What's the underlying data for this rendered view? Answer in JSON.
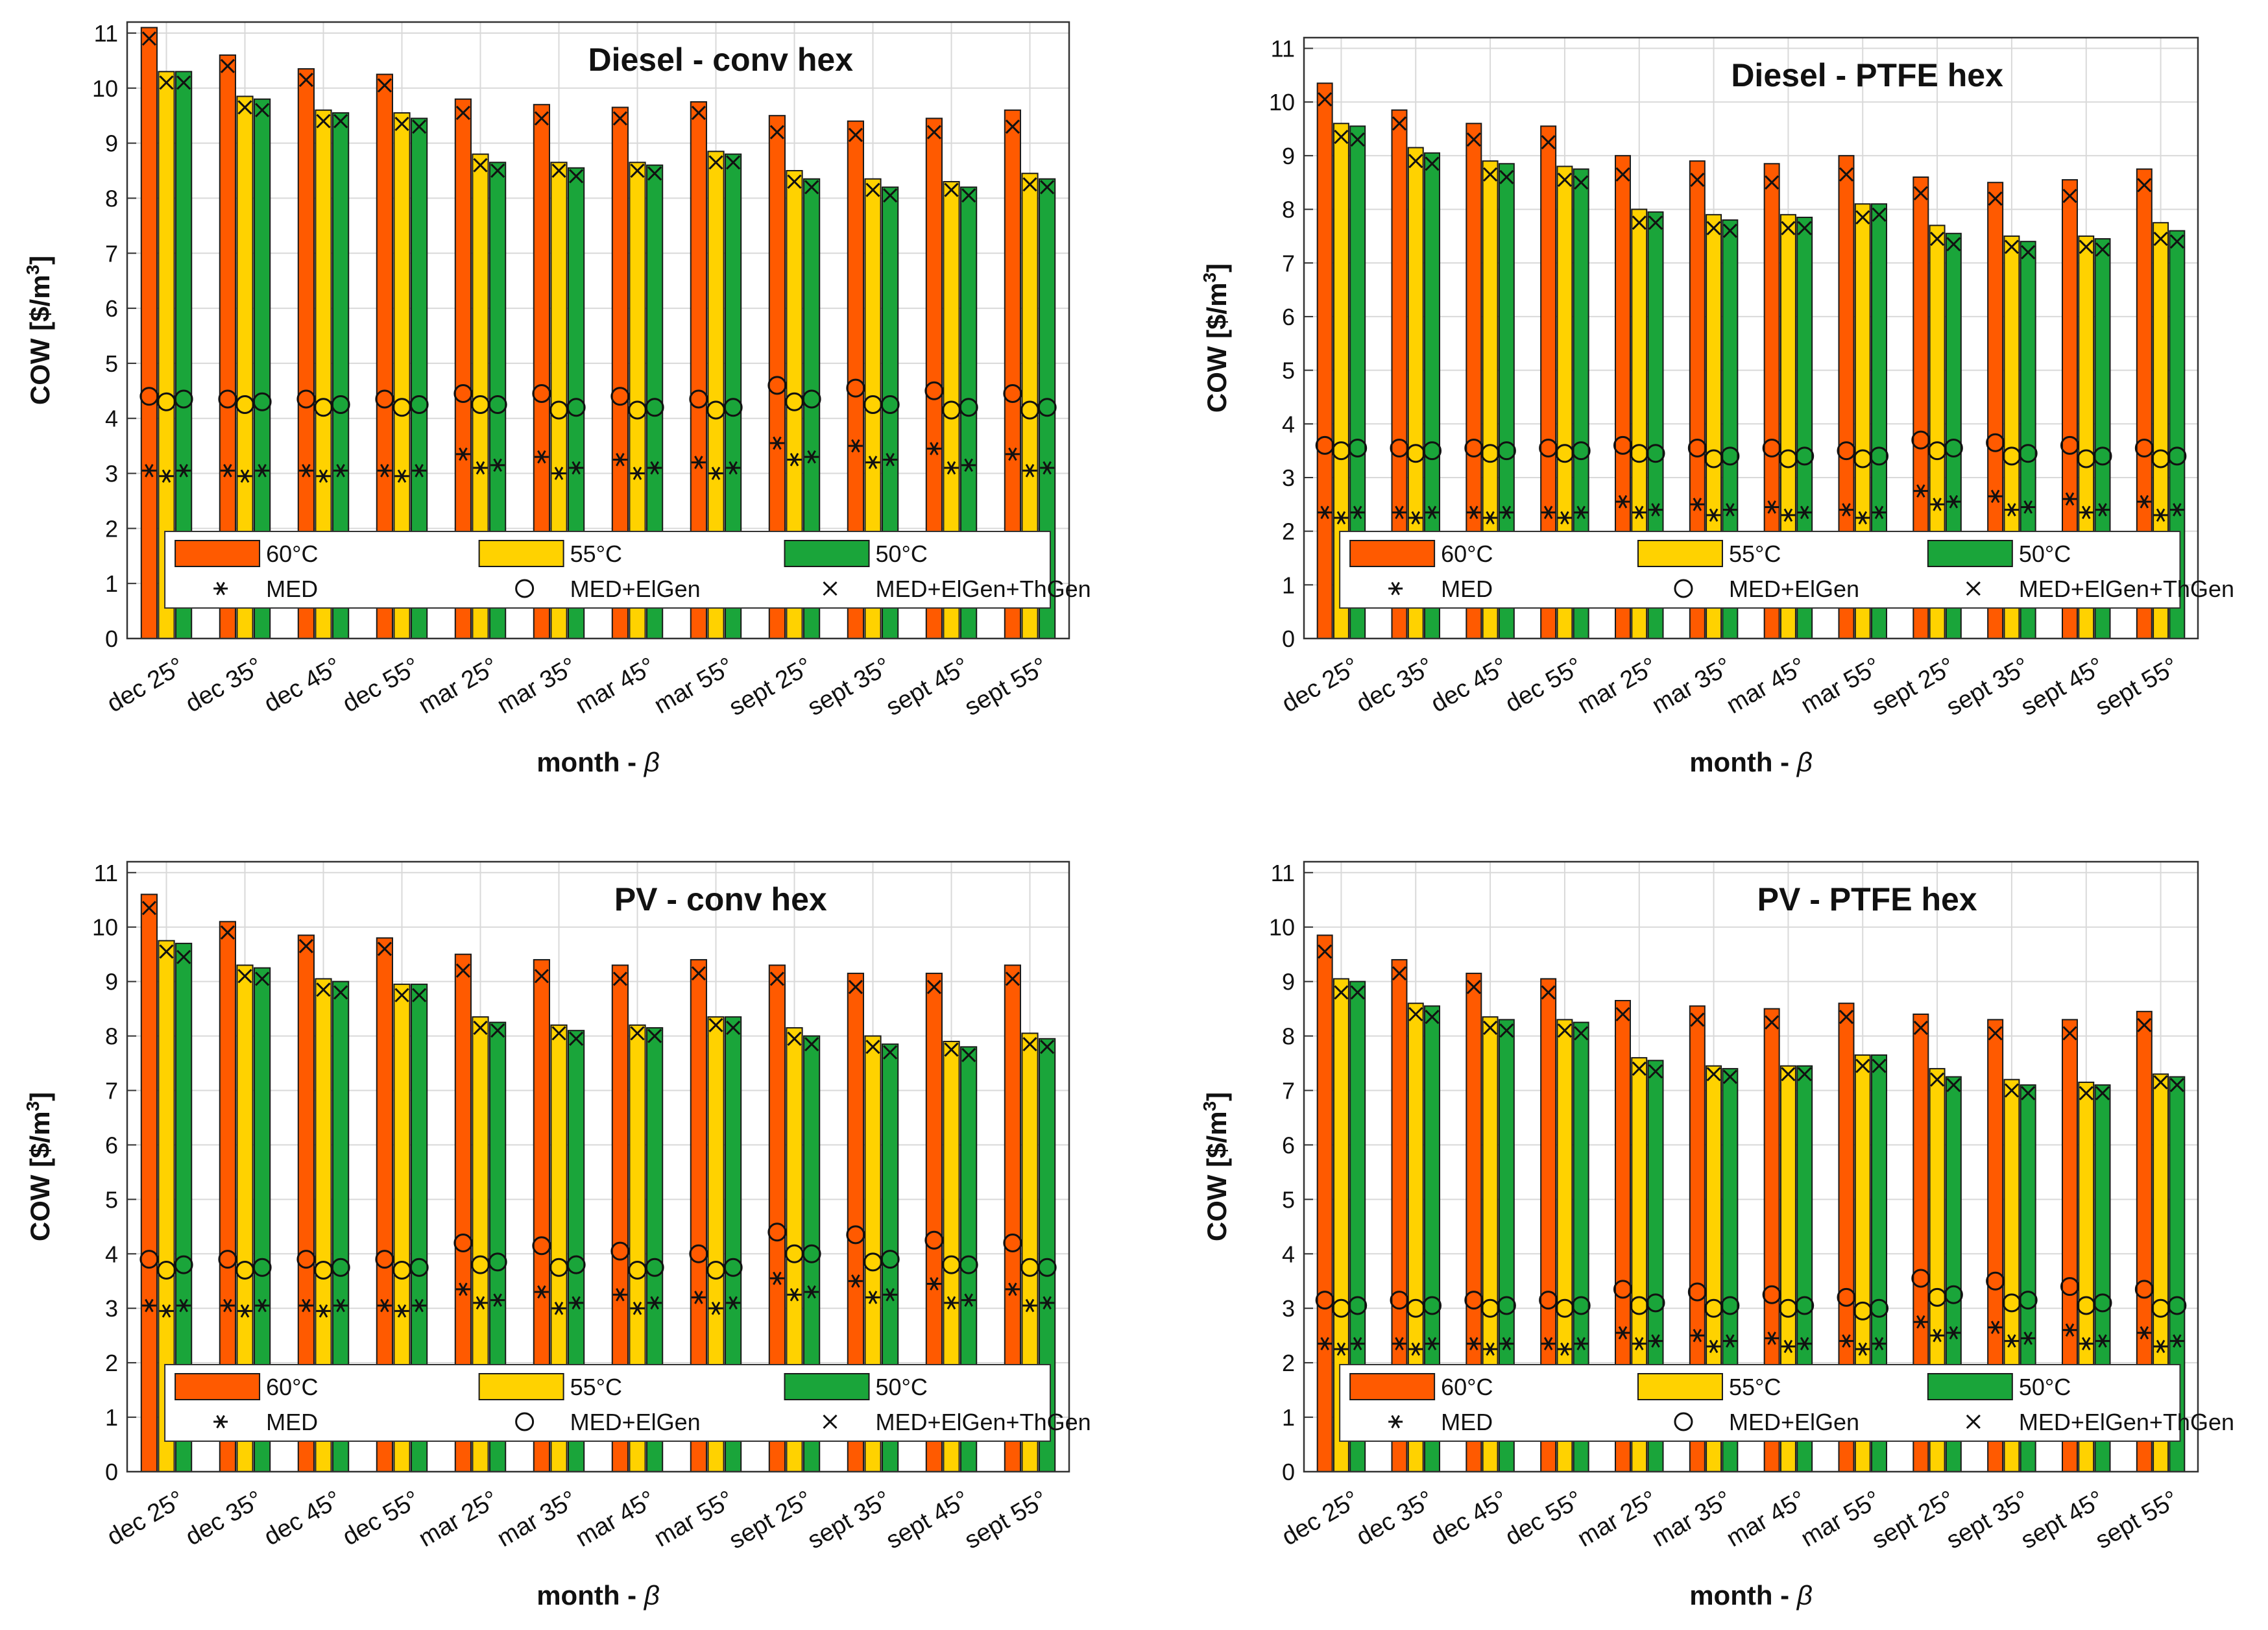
{
  "figure": {
    "description_free": true
  },
  "chart_data": [
    {
      "type": "bar",
      "title": "Diesel - conv hex",
      "xlabel": "month - β",
      "ylabel": "COW [$/m³]",
      "ylabel_base": "COW [$/m",
      "ylabel_sup": "3",
      "ylabel_end": "]",
      "xlabel_base": "month - ",
      "xlabel_sym": "β",
      "ylim": [
        0,
        11.2
      ],
      "yticks": [
        "0",
        "1",
        "2",
        "3",
        "4",
        "5",
        "6",
        "7",
        "8",
        "9",
        "10",
        "11"
      ],
      "grid": true,
      "legend_position": "bottom",
      "categories": [
        "dec 25°",
        "dec 35°",
        "dec 45°",
        "dec 55°",
        "mar 25°",
        "mar 35°",
        "mar 45°",
        "mar 55°",
        "sept 25°",
        "sept 35°",
        "sept 45°",
        "sept 55°"
      ],
      "series": [
        {
          "name": "60°C",
          "color": "#ff5a00",
          "values": [
            11.1,
            10.6,
            10.35,
            10.25,
            9.8,
            9.7,
            9.65,
            9.75,
            9.5,
            9.4,
            9.45,
            9.6
          ],
          "MED": [
            3.05,
            3.05,
            3.05,
            3.05,
            3.35,
            3.3,
            3.25,
            3.2,
            3.55,
            3.5,
            3.45,
            3.35
          ],
          "MED_ElGen": [
            4.4,
            4.35,
            4.35,
            4.35,
            4.45,
            4.45,
            4.4,
            4.35,
            4.6,
            4.55,
            4.5,
            4.45
          ],
          "MED_ElGen_ThGen": [
            10.9,
            10.4,
            10.15,
            10.05,
            9.55,
            9.45,
            9.45,
            9.55,
            9.2,
            9.15,
            9.2,
            9.3
          ]
        },
        {
          "name": "55°C",
          "color": "#ffd200",
          "values": [
            10.3,
            9.85,
            9.6,
            9.55,
            8.8,
            8.65,
            8.65,
            8.85,
            8.5,
            8.35,
            8.3,
            8.45
          ],
          "MED": [
            2.95,
            2.95,
            2.95,
            2.95,
            3.1,
            3.0,
            3.0,
            3.0,
            3.25,
            3.2,
            3.1,
            3.05
          ],
          "MED_ElGen": [
            4.3,
            4.25,
            4.2,
            4.2,
            4.25,
            4.15,
            4.15,
            4.15,
            4.3,
            4.25,
            4.15,
            4.15
          ],
          "MED_ElGen_ThGen": [
            10.1,
            9.65,
            9.4,
            9.35,
            8.6,
            8.5,
            8.5,
            8.65,
            8.3,
            8.15,
            8.15,
            8.25
          ]
        },
        {
          "name": "50°C",
          "color": "#1aa53a",
          "values": [
            10.3,
            9.8,
            9.55,
            9.45,
            8.65,
            8.55,
            8.6,
            8.8,
            8.35,
            8.2,
            8.2,
            8.35
          ],
          "MED": [
            3.05,
            3.05,
            3.05,
            3.05,
            3.15,
            3.1,
            3.1,
            3.1,
            3.3,
            3.25,
            3.15,
            3.1
          ],
          "MED_ElGen": [
            4.35,
            4.3,
            4.25,
            4.25,
            4.25,
            4.2,
            4.2,
            4.2,
            4.35,
            4.25,
            4.2,
            4.2
          ],
          "MED_ElGen_ThGen": [
            10.1,
            9.6,
            9.4,
            9.3,
            8.5,
            8.4,
            8.45,
            8.65,
            8.2,
            8.05,
            8.05,
            8.2
          ]
        }
      ],
      "legend_markers": [
        "MED",
        "MED+ElGen",
        "MED+ElGen+ThGen"
      ]
    },
    {
      "type": "bar",
      "title": "Diesel - PTFE hex",
      "xlabel": "month - β",
      "ylabel": "COW [$/m³]",
      "ylabel_base": "COW [$/m",
      "ylabel_sup": "3",
      "ylabel_end": "]",
      "xlabel_base": "month - ",
      "xlabel_sym": "β",
      "ylim": [
        0,
        11.2
      ],
      "yticks": [
        "0",
        "1",
        "2",
        "3",
        "4",
        "5",
        "6",
        "7",
        "8",
        "9",
        "10",
        "11"
      ],
      "grid": true,
      "legend_position": "bottom",
      "categories": [
        "dec 25°",
        "dec 35°",
        "dec 45°",
        "dec 55°",
        "mar 25°",
        "mar 35°",
        "mar 45°",
        "mar 55°",
        "sept 25°",
        "sept 35°",
        "sept 45°",
        "sept 55°"
      ],
      "series": [
        {
          "name": "60°C",
          "color": "#ff5a00",
          "values": [
            10.35,
            9.85,
            9.6,
            9.55,
            9.0,
            8.9,
            8.85,
            9.0,
            8.6,
            8.5,
            8.55,
            8.75
          ],
          "MED": [
            2.35,
            2.35,
            2.35,
            2.35,
            2.55,
            2.5,
            2.45,
            2.4,
            2.75,
            2.65,
            2.6,
            2.55
          ],
          "MED_ElGen": [
            3.6,
            3.55,
            3.55,
            3.55,
            3.6,
            3.55,
            3.55,
            3.5,
            3.7,
            3.65,
            3.6,
            3.55
          ],
          "MED_ElGen_ThGen": [
            10.05,
            9.6,
            9.3,
            9.25,
            8.65,
            8.55,
            8.5,
            8.65,
            8.3,
            8.2,
            8.25,
            8.45
          ]
        },
        {
          "name": "55°C",
          "color": "#ffd200",
          "values": [
            9.6,
            9.15,
            8.9,
            8.8,
            8.0,
            7.9,
            7.9,
            8.1,
            7.7,
            7.5,
            7.5,
            7.75
          ],
          "MED": [
            2.25,
            2.25,
            2.25,
            2.25,
            2.35,
            2.3,
            2.3,
            2.25,
            2.5,
            2.4,
            2.35,
            2.3
          ],
          "MED_ElGen": [
            3.5,
            3.45,
            3.45,
            3.45,
            3.45,
            3.35,
            3.35,
            3.35,
            3.5,
            3.4,
            3.35,
            3.35
          ],
          "MED_ElGen_ThGen": [
            9.35,
            8.9,
            8.65,
            8.55,
            7.75,
            7.65,
            7.65,
            7.85,
            7.45,
            7.3,
            7.3,
            7.45
          ]
        },
        {
          "name": "50°C",
          "color": "#1aa53a",
          "values": [
            9.55,
            9.05,
            8.85,
            8.75,
            7.95,
            7.8,
            7.85,
            8.1,
            7.55,
            7.4,
            7.45,
            7.6
          ],
          "MED": [
            2.35,
            2.35,
            2.35,
            2.35,
            2.4,
            2.4,
            2.35,
            2.35,
            2.55,
            2.45,
            2.4,
            2.4
          ],
          "MED_ElGen": [
            3.55,
            3.5,
            3.5,
            3.5,
            3.45,
            3.4,
            3.4,
            3.4,
            3.55,
            3.45,
            3.4,
            3.4
          ],
          "MED_ElGen_ThGen": [
            9.3,
            8.85,
            8.6,
            8.5,
            7.75,
            7.6,
            7.65,
            7.9,
            7.35,
            7.2,
            7.25,
            7.4
          ]
        }
      ],
      "legend_markers": [
        "MED",
        "MED+ElGen",
        "MED+ElGen+ThGen"
      ]
    },
    {
      "type": "bar",
      "title": "PV - conv hex",
      "xlabel": "month - β",
      "ylabel": "COW [$/m³]",
      "ylabel_base": "COW [$/m",
      "ylabel_sup": "3",
      "ylabel_end": "]",
      "xlabel_base": "month - ",
      "xlabel_sym": "β",
      "ylim": [
        0,
        11.2
      ],
      "yticks": [
        "0",
        "1",
        "2",
        "3",
        "4",
        "5",
        "6",
        "7",
        "8",
        "9",
        "10",
        "11"
      ],
      "grid": true,
      "legend_position": "bottom",
      "categories": [
        "dec 25°",
        "dec 35°",
        "dec 45°",
        "dec 55°",
        "mar 25°",
        "mar 35°",
        "mar 45°",
        "mar 55°",
        "sept 25°",
        "sept 35°",
        "sept 45°",
        "sept 55°"
      ],
      "series": [
        {
          "name": "60°C",
          "color": "#ff5a00",
          "values": [
            10.6,
            10.1,
            9.85,
            9.8,
            9.5,
            9.4,
            9.3,
            9.4,
            9.3,
            9.15,
            9.15,
            9.3
          ],
          "MED": [
            3.05,
            3.05,
            3.05,
            3.05,
            3.35,
            3.3,
            3.25,
            3.2,
            3.55,
            3.5,
            3.45,
            3.35
          ],
          "MED_ElGen": [
            3.9,
            3.9,
            3.9,
            3.9,
            4.2,
            4.15,
            4.05,
            4.0,
            4.4,
            4.35,
            4.25,
            4.2
          ],
          "MED_ElGen_ThGen": [
            10.35,
            9.9,
            9.65,
            9.6,
            9.2,
            9.1,
            9.05,
            9.15,
            9.05,
            8.9,
            8.9,
            9.05
          ]
        },
        {
          "name": "55°C",
          "color": "#ffd200",
          "values": [
            9.75,
            9.3,
            9.05,
            8.95,
            8.35,
            8.2,
            8.2,
            8.35,
            8.15,
            8.0,
            7.9,
            8.05
          ],
          "MED": [
            2.95,
            2.95,
            2.95,
            2.95,
            3.1,
            3.0,
            3.0,
            3.0,
            3.25,
            3.2,
            3.1,
            3.05
          ],
          "MED_ElGen": [
            3.7,
            3.7,
            3.7,
            3.7,
            3.8,
            3.75,
            3.7,
            3.7,
            4.0,
            3.85,
            3.8,
            3.75
          ],
          "MED_ElGen_ThGen": [
            9.55,
            9.1,
            8.85,
            8.75,
            8.15,
            8.05,
            8.05,
            8.2,
            7.95,
            7.8,
            7.75,
            7.85
          ]
        },
        {
          "name": "50°C",
          "color": "#1aa53a",
          "values": [
            9.7,
            9.25,
            9.0,
            8.95,
            8.25,
            8.1,
            8.15,
            8.35,
            8.0,
            7.85,
            7.8,
            7.95
          ],
          "MED": [
            3.05,
            3.05,
            3.05,
            3.05,
            3.15,
            3.1,
            3.1,
            3.1,
            3.3,
            3.25,
            3.15,
            3.1
          ],
          "MED_ElGen": [
            3.8,
            3.75,
            3.75,
            3.75,
            3.85,
            3.8,
            3.75,
            3.75,
            4.0,
            3.9,
            3.8,
            3.75
          ],
          "MED_ElGen_ThGen": [
            9.45,
            9.05,
            8.8,
            8.75,
            8.1,
            7.95,
            8.0,
            8.15,
            7.85,
            7.7,
            7.65,
            7.8
          ]
        }
      ],
      "legend_markers": [
        "MED",
        "MED+ElGen",
        "MED+ElGen+ThGen"
      ]
    },
    {
      "type": "bar",
      "title": "PV - PTFE hex",
      "xlabel": "month - β",
      "ylabel": "COW [$/m³]",
      "ylabel_base": "COW [$/m",
      "ylabel_sup": "3",
      "ylabel_end": "]",
      "xlabel_base": "month - ",
      "xlabel_sym": "β",
      "ylim": [
        0,
        11.2
      ],
      "yticks": [
        "0",
        "1",
        "2",
        "3",
        "4",
        "5",
        "6",
        "7",
        "8",
        "9",
        "10",
        "11"
      ],
      "grid": true,
      "legend_position": "bottom",
      "categories": [
        "dec 25°",
        "dec 35°",
        "dec 45°",
        "dec 55°",
        "mar 25°",
        "mar 35°",
        "mar 45°",
        "mar 55°",
        "sept 25°",
        "sept 35°",
        "sept 45°",
        "sept 55°"
      ],
      "series": [
        {
          "name": "60°C",
          "color": "#ff5a00",
          "values": [
            9.85,
            9.4,
            9.15,
            9.05,
            8.65,
            8.55,
            8.5,
            8.6,
            8.4,
            8.3,
            8.3,
            8.45
          ],
          "MED": [
            2.35,
            2.35,
            2.35,
            2.35,
            2.55,
            2.5,
            2.45,
            2.4,
            2.75,
            2.65,
            2.6,
            2.55
          ],
          "MED_ElGen": [
            3.15,
            3.15,
            3.15,
            3.15,
            3.35,
            3.3,
            3.25,
            3.2,
            3.55,
            3.5,
            3.4,
            3.35
          ],
          "MED_ElGen_ThGen": [
            9.55,
            9.15,
            8.9,
            8.8,
            8.4,
            8.3,
            8.25,
            8.35,
            8.15,
            8.05,
            8.05,
            8.2
          ]
        },
        {
          "name": "55°C",
          "color": "#ffd200",
          "values": [
            9.05,
            8.6,
            8.35,
            8.3,
            7.6,
            7.45,
            7.45,
            7.65,
            7.4,
            7.2,
            7.15,
            7.3
          ],
          "MED": [
            2.25,
            2.25,
            2.25,
            2.25,
            2.35,
            2.3,
            2.3,
            2.25,
            2.5,
            2.4,
            2.35,
            2.3
          ],
          "MED_ElGen": [
            3.0,
            3.0,
            3.0,
            3.0,
            3.05,
            3.0,
            3.0,
            2.95,
            3.2,
            3.1,
            3.05,
            3.0
          ],
          "MED_ElGen_ThGen": [
            8.8,
            8.4,
            8.15,
            8.1,
            7.4,
            7.3,
            7.3,
            7.45,
            7.2,
            7.0,
            6.95,
            7.15
          ]
        },
        {
          "name": "50°C",
          "color": "#1aa53a",
          "values": [
            9.0,
            8.55,
            8.3,
            8.25,
            7.55,
            7.4,
            7.45,
            7.65,
            7.25,
            7.1,
            7.1,
            7.25
          ],
          "MED": [
            2.35,
            2.35,
            2.35,
            2.35,
            2.4,
            2.4,
            2.35,
            2.35,
            2.55,
            2.45,
            2.4,
            2.4
          ],
          "MED_ElGen": [
            3.05,
            3.05,
            3.05,
            3.05,
            3.1,
            3.05,
            3.05,
            3.0,
            3.25,
            3.15,
            3.1,
            3.05
          ],
          "MED_ElGen_ThGen": [
            8.8,
            8.35,
            8.1,
            8.05,
            7.35,
            7.25,
            7.3,
            7.45,
            7.1,
            6.95,
            6.95,
            7.1
          ]
        }
      ],
      "legend_markers": [
        "MED",
        "MED+ElGen",
        "MED+ElGen+ThGen"
      ]
    }
  ]
}
